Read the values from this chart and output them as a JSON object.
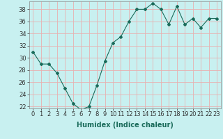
{
  "x": [
    0,
    1,
    2,
    3,
    4,
    5,
    6,
    7,
    8,
    9,
    10,
    11,
    12,
    13,
    14,
    15,
    16,
    17,
    18,
    19,
    20,
    21,
    22,
    23
  ],
  "y": [
    31,
    29,
    29,
    27.5,
    25,
    22.5,
    21.5,
    22,
    25.5,
    29.5,
    32.5,
    33.5,
    36,
    38,
    38,
    39,
    38,
    35.5,
    38.5,
    35.5,
    36.5,
    35,
    36.5,
    36.5
  ],
  "line_color": "#1a6b5a",
  "marker": "D",
  "marker_size": 2,
  "bg_color": "#c8f0f0",
  "grid_color": "#e8b0b0",
  "xlabel": "Humidex (Indice chaleur)",
  "xlabel_fontsize": 7,
  "tick_fontsize": 6,
  "ylim": [
    22,
    39
  ],
  "xlim": [
    -0.5,
    23.5
  ],
  "yticks": [
    22,
    24,
    26,
    28,
    30,
    32,
    34,
    36,
    38
  ],
  "xticks": [
    0,
    1,
    2,
    3,
    4,
    5,
    6,
    7,
    8,
    9,
    10,
    11,
    12,
    13,
    14,
    15,
    16,
    17,
    18,
    19,
    20,
    21,
    22,
    23
  ]
}
